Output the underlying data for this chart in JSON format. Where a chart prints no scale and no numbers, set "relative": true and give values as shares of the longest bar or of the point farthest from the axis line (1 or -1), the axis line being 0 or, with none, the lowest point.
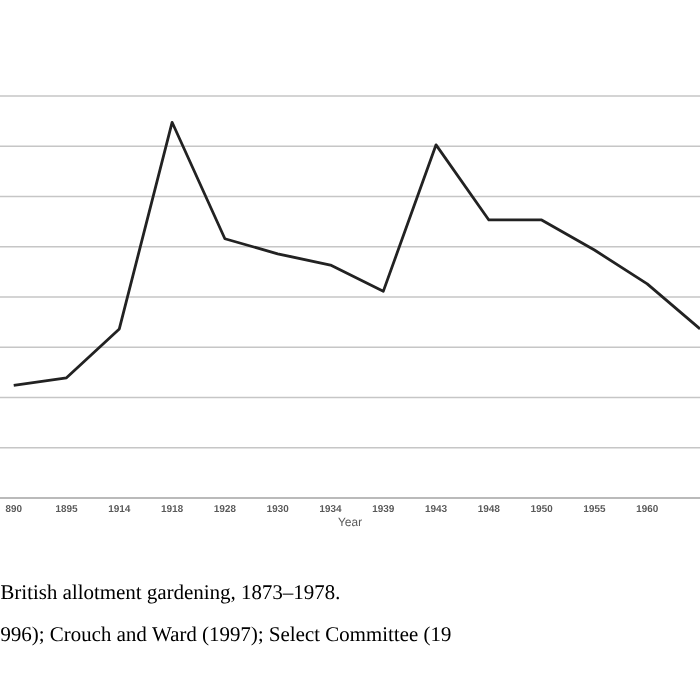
{
  "chart_data": {
    "type": "line",
    "relative": true,
    "grid": "y",
    "color": "#222222",
    "xlabel": "Year",
    "categories": [
      "890",
      "1895",
      "1914",
      "1918",
      "1928",
      "1930",
      "1934",
      "1939",
      "1943",
      "1948",
      "1950",
      "1955",
      "1960",
      null
    ],
    "values": [
      0.3,
      0.32,
      0.45,
      1,
      0.69,
      0.65,
      0.62,
      0.55,
      0.94,
      0.74,
      0.74,
      0.66,
      0.57,
      0.45
    ],
    "annotations": [
      "British allotment gardening, 1873–1978.",
      "996); Crouch and Ward (1997); Select Committee (19"
    ]
  }
}
